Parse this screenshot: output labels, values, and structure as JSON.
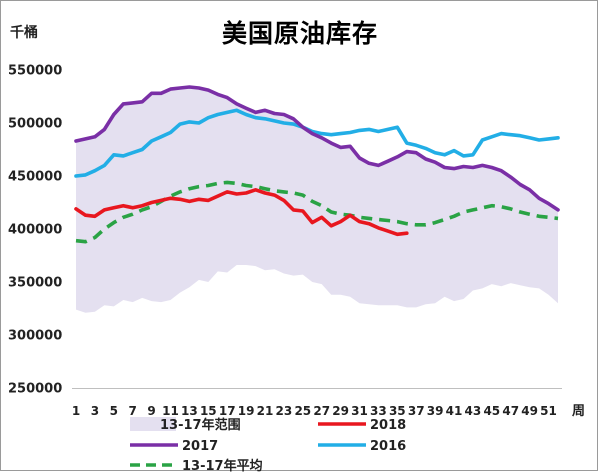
{
  "chart_data": {
    "type": "line",
    "title": "美国原油库存",
    "unit_label": "千桶",
    "xlabel": "周",
    "ylim": [
      250000,
      560000
    ],
    "y_ticks": [
      250000,
      300000,
      350000,
      400000,
      450000,
      500000,
      550000
    ],
    "x_tick_labels": [
      "1",
      "3",
      "5",
      "7",
      "9",
      "11",
      "13",
      "15",
      "17",
      "19",
      "21",
      "23",
      "25",
      "27",
      "29",
      "31",
      "33",
      "35",
      "37",
      "39",
      "41",
      "43",
      "45",
      "47",
      "49",
      "51"
    ],
    "x": [
      1,
      2,
      3,
      4,
      5,
      6,
      7,
      8,
      9,
      10,
      11,
      12,
      13,
      14,
      15,
      16,
      17,
      18,
      19,
      20,
      21,
      22,
      23,
      24,
      25,
      26,
      27,
      28,
      29,
      30,
      31,
      32,
      33,
      34,
      35,
      36,
      37,
      38,
      39,
      40,
      41,
      42,
      43,
      44,
      45,
      46,
      47,
      48,
      49,
      50,
      51,
      52
    ],
    "range_band": {
      "name": "13-17年范围",
      "color": "#e4e0f0",
      "upper": [
        483000,
        485000,
        487000,
        494000,
        508000,
        518000,
        519000,
        520000,
        528000,
        528000,
        532000,
        533000,
        534000,
        533000,
        531000,
        527000,
        524000,
        518000,
        514000,
        510000,
        512000,
        509000,
        508000,
        504000,
        496000,
        490000,
        486000,
        481000,
        477000,
        478000,
        467000,
        462000,
        460000,
        464000,
        468000,
        473000,
        472000,
        466000,
        463000,
        458000,
        457000,
        459000,
        458000,
        460000,
        458000,
        455000,
        449000,
        442000,
        437000,
        429000,
        424000,
        418000
      ],
      "lower": [
        324000,
        321000,
        322000,
        328000,
        327000,
        333000,
        331000,
        335000,
        332000,
        331000,
        333000,
        340000,
        345000,
        352000,
        350000,
        360000,
        359000,
        366000,
        366000,
        365000,
        361000,
        362000,
        358000,
        356000,
        357000,
        350000,
        348000,
        338000,
        338000,
        336000,
        330000,
        329000,
        328000,
        328000,
        328000,
        326000,
        326000,
        329000,
        330000,
        336000,
        332000,
        334000,
        342000,
        344000,
        348000,
        346000,
        349000,
        347000,
        345000,
        344000,
        338000,
        330000
      ]
    },
    "series": [
      {
        "name": "2018",
        "color": "#e8171f",
        "dash": false,
        "values": [
          419000,
          413000,
          412000,
          418000,
          420000,
          422000,
          420000,
          422000,
          425000,
          427000,
          429000,
          428000,
          426000,
          428000,
          427000,
          431000,
          435000,
          433000,
          434000,
          437000,
          434000,
          432000,
          427000,
          418000,
          417000,
          406000,
          411000,
          403000,
          407000,
          413000,
          407000,
          405000,
          401000,
          398000,
          395000,
          396000,
          null,
          null,
          null,
          null,
          null,
          null,
          null,
          null,
          null,
          null,
          null,
          null,
          null,
          null,
          null,
          null
        ]
      },
      {
        "name": "2017",
        "color": "#7a2fa6",
        "dash": false,
        "values": [
          483000,
          485000,
          487000,
          494000,
          508000,
          518000,
          519000,
          520000,
          528000,
          528000,
          532000,
          533000,
          534000,
          533000,
          531000,
          527000,
          524000,
          518000,
          514000,
          510000,
          512000,
          509000,
          508000,
          504000,
          496000,
          490000,
          486000,
          481000,
          477000,
          478000,
          467000,
          462000,
          460000,
          464000,
          468000,
          473000,
          472000,
          466000,
          463000,
          458000,
          457000,
          459000,
          458000,
          460000,
          458000,
          455000,
          449000,
          442000,
          437000,
          429000,
          424000,
          418000
        ]
      },
      {
        "name": "2016",
        "color": "#22aee6",
        "dash": false,
        "values": [
          450000,
          451000,
          455000,
          460000,
          470000,
          469000,
          472000,
          475000,
          483000,
          487000,
          491000,
          499000,
          501000,
          500000,
          505000,
          508000,
          510000,
          512000,
          508000,
          505000,
          504000,
          502000,
          500000,
          499000,
          496000,
          492000,
          490000,
          489000,
          490000,
          491000,
          493000,
          494000,
          492000,
          494000,
          496000,
          481000,
          479000,
          476000,
          472000,
          470000,
          474000,
          469000,
          470000,
          484000,
          487000,
          490000,
          489000,
          488000,
          486000,
          484000,
          485000,
          486000
        ]
      },
      {
        "name": "13-17年平均",
        "color": "#2aa345",
        "dash": true,
        "values": [
          389000,
          388000,
          392000,
          400000,
          406000,
          411000,
          414000,
          418000,
          421000,
          426000,
          431000,
          435000,
          438000,
          440000,
          441000,
          443000,
          444000,
          443000,
          441000,
          440000,
          438000,
          436000,
          435000,
          434000,
          432000,
          426000,
          422000,
          416000,
          414000,
          413000,
          411000,
          410000,
          409000,
          408000,
          407000,
          405000,
          404000,
          404000,
          406000,
          409000,
          412000,
          416000,
          418000,
          420000,
          422000,
          421000,
          419000,
          416000,
          414000,
          412000,
          411000,
          410000
        ]
      }
    ],
    "legend_position": "bottom",
    "grid": false
  }
}
